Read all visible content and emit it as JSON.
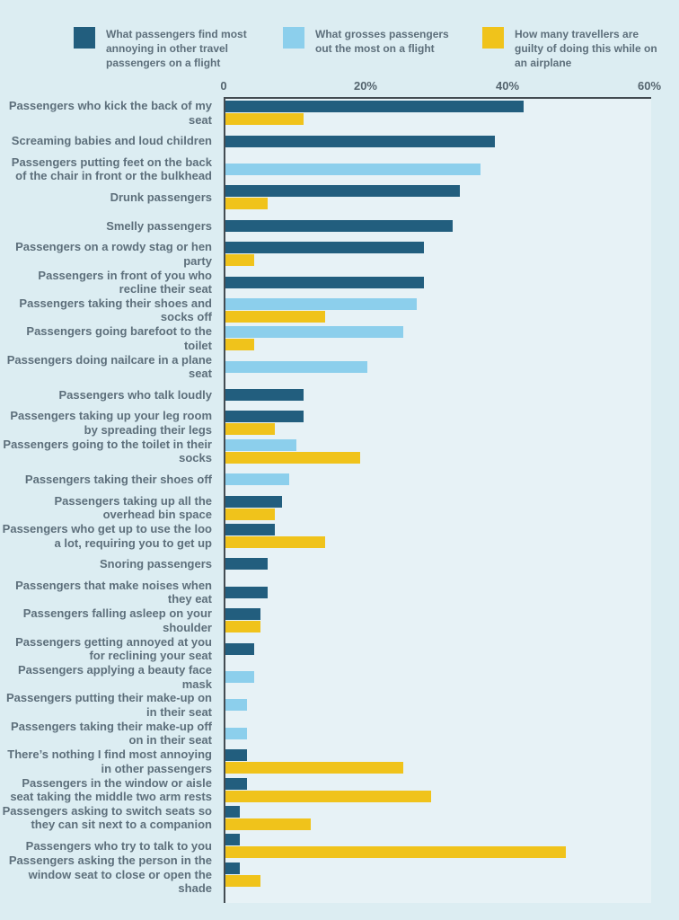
{
  "colors": {
    "page_background": "#dcedf2",
    "plot_background": "#e7f2f6",
    "axis_line": "#434c52",
    "label_text": "#5d6f7b",
    "series_annoying": "#225e7e",
    "series_gross": "#8ccfec",
    "series_guilty": "#f0c31b"
  },
  "chart_data": {
    "type": "bar",
    "orientation": "horizontal",
    "grid": false,
    "legend_position": "top",
    "series": [
      {
        "key": "annoying",
        "name": "What passengers find most annoying in other travel passengers on a flight",
        "color": "#225e7e"
      },
      {
        "key": "gross",
        "name": "What grosses passengers out the most on a flight",
        "color": "#8ccfec"
      },
      {
        "key": "guilty",
        "name": "How many travellers are guilty of doing this while on an airplane",
        "color": "#f0c31b"
      }
    ],
    "x_axis": {
      "min": 0,
      "max": 60,
      "unit": "percent",
      "ticks": [
        "0",
        "20%",
        "40%",
        "60%"
      ]
    },
    "rows": [
      {
        "label": "Passengers who kick the back of my seat",
        "bars": [
          {
            "series": "annoying",
            "value": 42
          },
          {
            "series": "guilty",
            "value": 11
          }
        ]
      },
      {
        "label": "Screaming babies and loud children",
        "bars": [
          {
            "series": "annoying",
            "value": 38
          }
        ]
      },
      {
        "label": "Passengers putting feet on the back of the chair in front or the bulkhead",
        "bars": [
          {
            "series": "gross",
            "value": 36
          }
        ]
      },
      {
        "label": "Drunk passengers",
        "bars": [
          {
            "series": "annoying",
            "value": 33
          },
          {
            "series": "guilty",
            "value": 6
          }
        ]
      },
      {
        "label": "Smelly passengers",
        "bars": [
          {
            "series": "annoying",
            "value": 32
          }
        ]
      },
      {
        "label": "Passengers on a rowdy stag or hen party",
        "bars": [
          {
            "series": "annoying",
            "value": 28
          },
          {
            "series": "guilty",
            "value": 4
          }
        ]
      },
      {
        "label": "Passengers in front of you who recline their seat",
        "bars": [
          {
            "series": "annoying",
            "value": 28
          }
        ]
      },
      {
        "label": "Passengers taking their shoes and socks off",
        "bars": [
          {
            "series": "gross",
            "value": 27
          },
          {
            "series": "guilty",
            "value": 14
          }
        ]
      },
      {
        "label": "Passengers going barefoot to the toilet",
        "bars": [
          {
            "series": "gross",
            "value": 25
          },
          {
            "series": "guilty",
            "value": 4
          }
        ]
      },
      {
        "label": "Passengers doing nailcare in a plane seat",
        "bars": [
          {
            "series": "gross",
            "value": 20
          }
        ]
      },
      {
        "label": "Passengers who talk loudly",
        "bars": [
          {
            "series": "annoying",
            "value": 11
          }
        ]
      },
      {
        "label": "Passengers taking up your leg room by spreading their legs",
        "bars": [
          {
            "series": "annoying",
            "value": 11
          },
          {
            "series": "guilty",
            "value": 7
          }
        ]
      },
      {
        "label": "Passengers going to the toilet in their socks",
        "bars": [
          {
            "series": "gross",
            "value": 10
          },
          {
            "series": "guilty",
            "value": 19
          }
        ]
      },
      {
        "label": "Passengers taking their shoes off",
        "bars": [
          {
            "series": "gross",
            "value": 9
          }
        ]
      },
      {
        "label": "Passengers taking up all the overhead bin space",
        "bars": [
          {
            "series": "annoying",
            "value": 8
          },
          {
            "series": "guilty",
            "value": 7
          }
        ]
      },
      {
        "label": "Passengers who get up to use the loo a lot, requiring you to get up",
        "bars": [
          {
            "series": "annoying",
            "value": 7
          },
          {
            "series": "guilty",
            "value": 14
          }
        ]
      },
      {
        "label": "Snoring passengers",
        "bars": [
          {
            "series": "annoying",
            "value": 6
          }
        ]
      },
      {
        "label": "Passengers that make noises when they eat",
        "bars": [
          {
            "series": "annoying",
            "value": 6
          }
        ]
      },
      {
        "label": "Passengers falling asleep on your shoulder",
        "bars": [
          {
            "series": "annoying",
            "value": 5
          },
          {
            "series": "guilty",
            "value": 5
          }
        ]
      },
      {
        "label": "Passengers getting annoyed at you for reclining your seat",
        "bars": [
          {
            "series": "annoying",
            "value": 4
          }
        ]
      },
      {
        "label": "Passengers applying a beauty face mask",
        "bars": [
          {
            "series": "gross",
            "value": 4
          }
        ]
      },
      {
        "label": "Passengers putting their make-up on in their seat",
        "bars": [
          {
            "series": "gross",
            "value": 3
          }
        ]
      },
      {
        "label": "Passengers taking their make-up off on in their seat",
        "bars": [
          {
            "series": "gross",
            "value": 3
          }
        ]
      },
      {
        "label": "There’s nothing I find most annoying in other passengers",
        "bars": [
          {
            "series": "annoying",
            "value": 3
          },
          {
            "series": "guilty",
            "value": 25
          }
        ]
      },
      {
        "label": "Passengers in the window or aisle seat taking the middle two arm rests",
        "bars": [
          {
            "series": "annoying",
            "value": 3
          },
          {
            "series": "guilty",
            "value": 29
          }
        ]
      },
      {
        "label": "Passengers asking to switch seats so they can sit next to a companion",
        "bars": [
          {
            "series": "annoying",
            "value": 2
          },
          {
            "series": "guilty",
            "value": 12
          }
        ]
      },
      {
        "label": "Passengers who try to talk to you",
        "bars": [
          {
            "series": "annoying",
            "value": 2
          },
          {
            "series": "guilty",
            "value": 48
          }
        ]
      },
      {
        "label": "Passengers asking the person in the window seat to close or open the shade",
        "bars": [
          {
            "series": "annoying",
            "value": 2
          },
          {
            "series": "guilty",
            "value": 5
          }
        ]
      }
    ]
  }
}
